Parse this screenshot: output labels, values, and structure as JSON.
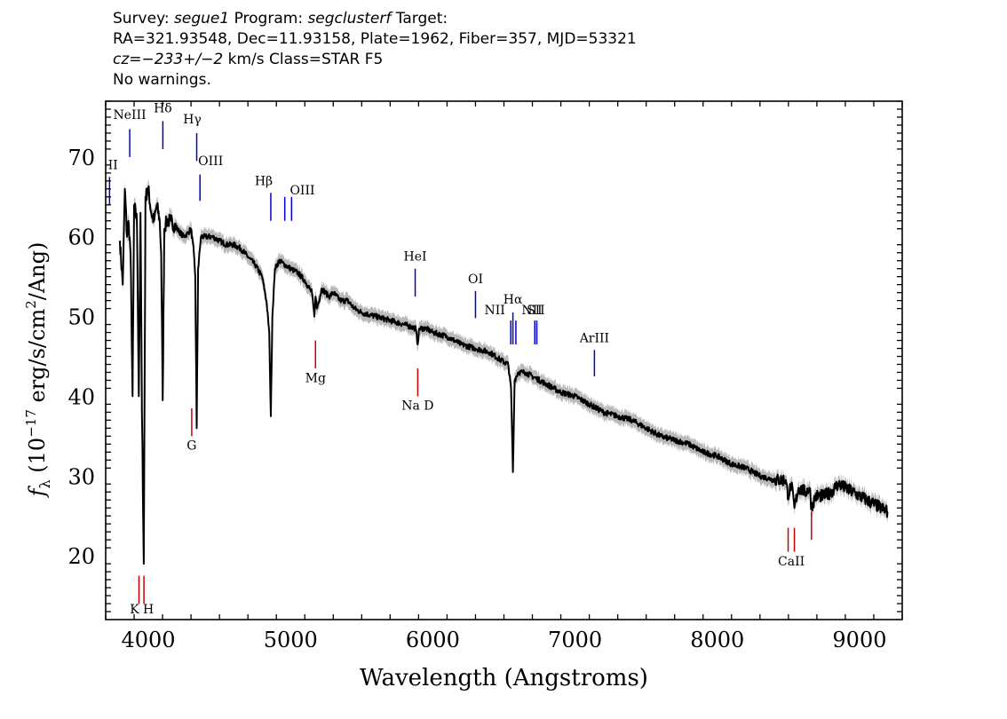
{
  "header": {
    "line1": {
      "survey_label": "Survey: ",
      "survey": "segue1",
      "program_label": " Program: ",
      "program": "segclusterf",
      "target_label": " Target:"
    },
    "line2": "RA=321.93548, Dec=11.93158, Plate=1962, Fiber=357, MJD=53321",
    "line3": {
      "cz": "cz=−233+/−2",
      "rest": " km/s Class=STAR F5"
    },
    "line4": "No warnings."
  },
  "chart_data": {
    "type": "line",
    "title": "",
    "xlabel": "Wavelength (Angstroms)",
    "ylabel": "f_λ (10^-17 erg/s/cm^2/Ang)",
    "xlim": [
      3700,
      9300
    ],
    "ylim": [
      12,
      77
    ],
    "x_ticks": [
      4000,
      5000,
      6000,
      7000,
      8000,
      9000
    ],
    "y_ticks": [
      20,
      30,
      40,
      50,
      60,
      70
    ],
    "series": [
      {
        "color": "#000000",
        "error_color": "#b8b8b8",
        "x": [
          3800,
          3820,
          3835,
          3850,
          3860,
          3875,
          3889,
          3900,
          3920,
          3933,
          3945,
          3955,
          3968,
          3980,
          4000,
          4020,
          4040,
          4060,
          4080,
          4090,
          4101,
          4112,
          4130,
          4160,
          4200,
          4250,
          4280,
          4300,
          4320,
          4330,
          4340,
          4350,
          4370,
          4400,
          4450,
          4500,
          4550,
          4600,
          4650,
          4700,
          4750,
          4800,
          4830,
          4850,
          4861,
          4872,
          4890,
          4920,
          4960,
          5000,
          5050,
          5100,
          5150,
          5167,
          5175,
          5185,
          5220,
          5270,
          5300,
          5350,
          5400,
          5450,
          5500,
          5600,
          5700,
          5800,
          5880,
          5893,
          5905,
          5950,
          6000,
          6100,
          6200,
          6300,
          6400,
          6480,
          6530,
          6550,
          6563,
          6575,
          6600,
          6650,
          6700,
          6800,
          6900,
          7000,
          7100,
          7200,
          7300,
          7400,
          7500,
          7600,
          7700,
          7800,
          7900,
          8000,
          8100,
          8200,
          8300,
          8400,
          8480,
          8498,
          8520,
          8542,
          8570,
          8620,
          8650,
          8662,
          8690,
          8750,
          8800,
          8850,
          8900,
          8950,
          9000,
          9050,
          9100,
          9150,
          9200
        ],
        "y": [
          59.5,
          54,
          66,
          60,
          62,
          58,
          40,
          64,
          62,
          40,
          63,
          38,
          19,
          65,
          66,
          63,
          62,
          64,
          62,
          58,
          39.5,
          61,
          62,
          62,
          61,
          60,
          60.5,
          61,
          58,
          55,
          36,
          56,
          60,
          60,
          60,
          59.5,
          59,
          59,
          58.5,
          57.5,
          56.5,
          55,
          52,
          48,
          37.5,
          50,
          56,
          57,
          56.5,
          56,
          55.5,
          54.5,
          53,
          50,
          52.5,
          51,
          53.5,
          52.5,
          53,
          52,
          52,
          51,
          50.5,
          50,
          49.5,
          49,
          48.5,
          46.5,
          48.5,
          48.5,
          48,
          47.5,
          46.5,
          46,
          45.5,
          44.5,
          44,
          41,
          30.5,
          42,
          43,
          43,
          42.5,
          41.5,
          40.5,
          40,
          39,
          38,
          37.5,
          37,
          36,
          35,
          34.5,
          34,
          33,
          32.5,
          31.5,
          31,
          30,
          29.5,
          29.5,
          27.5,
          29,
          26,
          28.5,
          28,
          28.5,
          26,
          27.5,
          27.5,
          28,
          29,
          28.5,
          28,
          27.5,
          27,
          26.5,
          26,
          25.5
        ]
      }
    ],
    "line_labels": [
      {
        "text": "NeIII",
        "wave": 3869,
        "color": "#0000cc"
      },
      {
        "text": "Hδ",
        "wave": 4102,
        "color": "#0000cc"
      },
      {
        "text": "Hγ",
        "wave": 4340,
        "color": "#0000cc"
      },
      {
        "text": "OIII",
        "wave": 4363,
        "color": "#0000cc"
      },
      {
        "text": "Hβ",
        "wave": 4861,
        "color": "#0000cc"
      },
      {
        "text": "OIII",
        "wave": 4959,
        "color": "#0000cc"
      },
      {
        "text": "HeI",
        "wave": 5876,
        "color": "#0000cc"
      },
      {
        "text": "OI",
        "wave": 6300,
        "color": "#0000cc"
      },
      {
        "text": "NII",
        "wave": 6548,
        "color": "#0000cc"
      },
      {
        "text": "Hα",
        "wave": 6563,
        "color": "#0000cc"
      },
      {
        "text": "NII",
        "wave": 6584,
        "color": "#0000cc"
      },
      {
        "text": "SII",
        "wave": 6717,
        "color": "#0000cc"
      },
      {
        "text": "ArIII",
        "wave": 7136,
        "color": "#0000cc"
      },
      {
        "text": "II",
        "wave": 3727,
        "color": "#0000cc"
      },
      {
        "text": "K",
        "wave": 3934,
        "color": "#cc0000"
      },
      {
        "text": "H",
        "wave": 3969,
        "color": "#cc0000"
      },
      {
        "text": "G",
        "wave": 4305,
        "color": "#cc0000"
      },
      {
        "text": "Mg",
        "wave": 5175,
        "color": "#cc0000"
      },
      {
        "text": "Na D",
        "wave": 5894,
        "color": "#cc0000"
      },
      {
        "text": "CaII",
        "wave": 8542,
        "color": "#cc0000"
      }
    ]
  }
}
